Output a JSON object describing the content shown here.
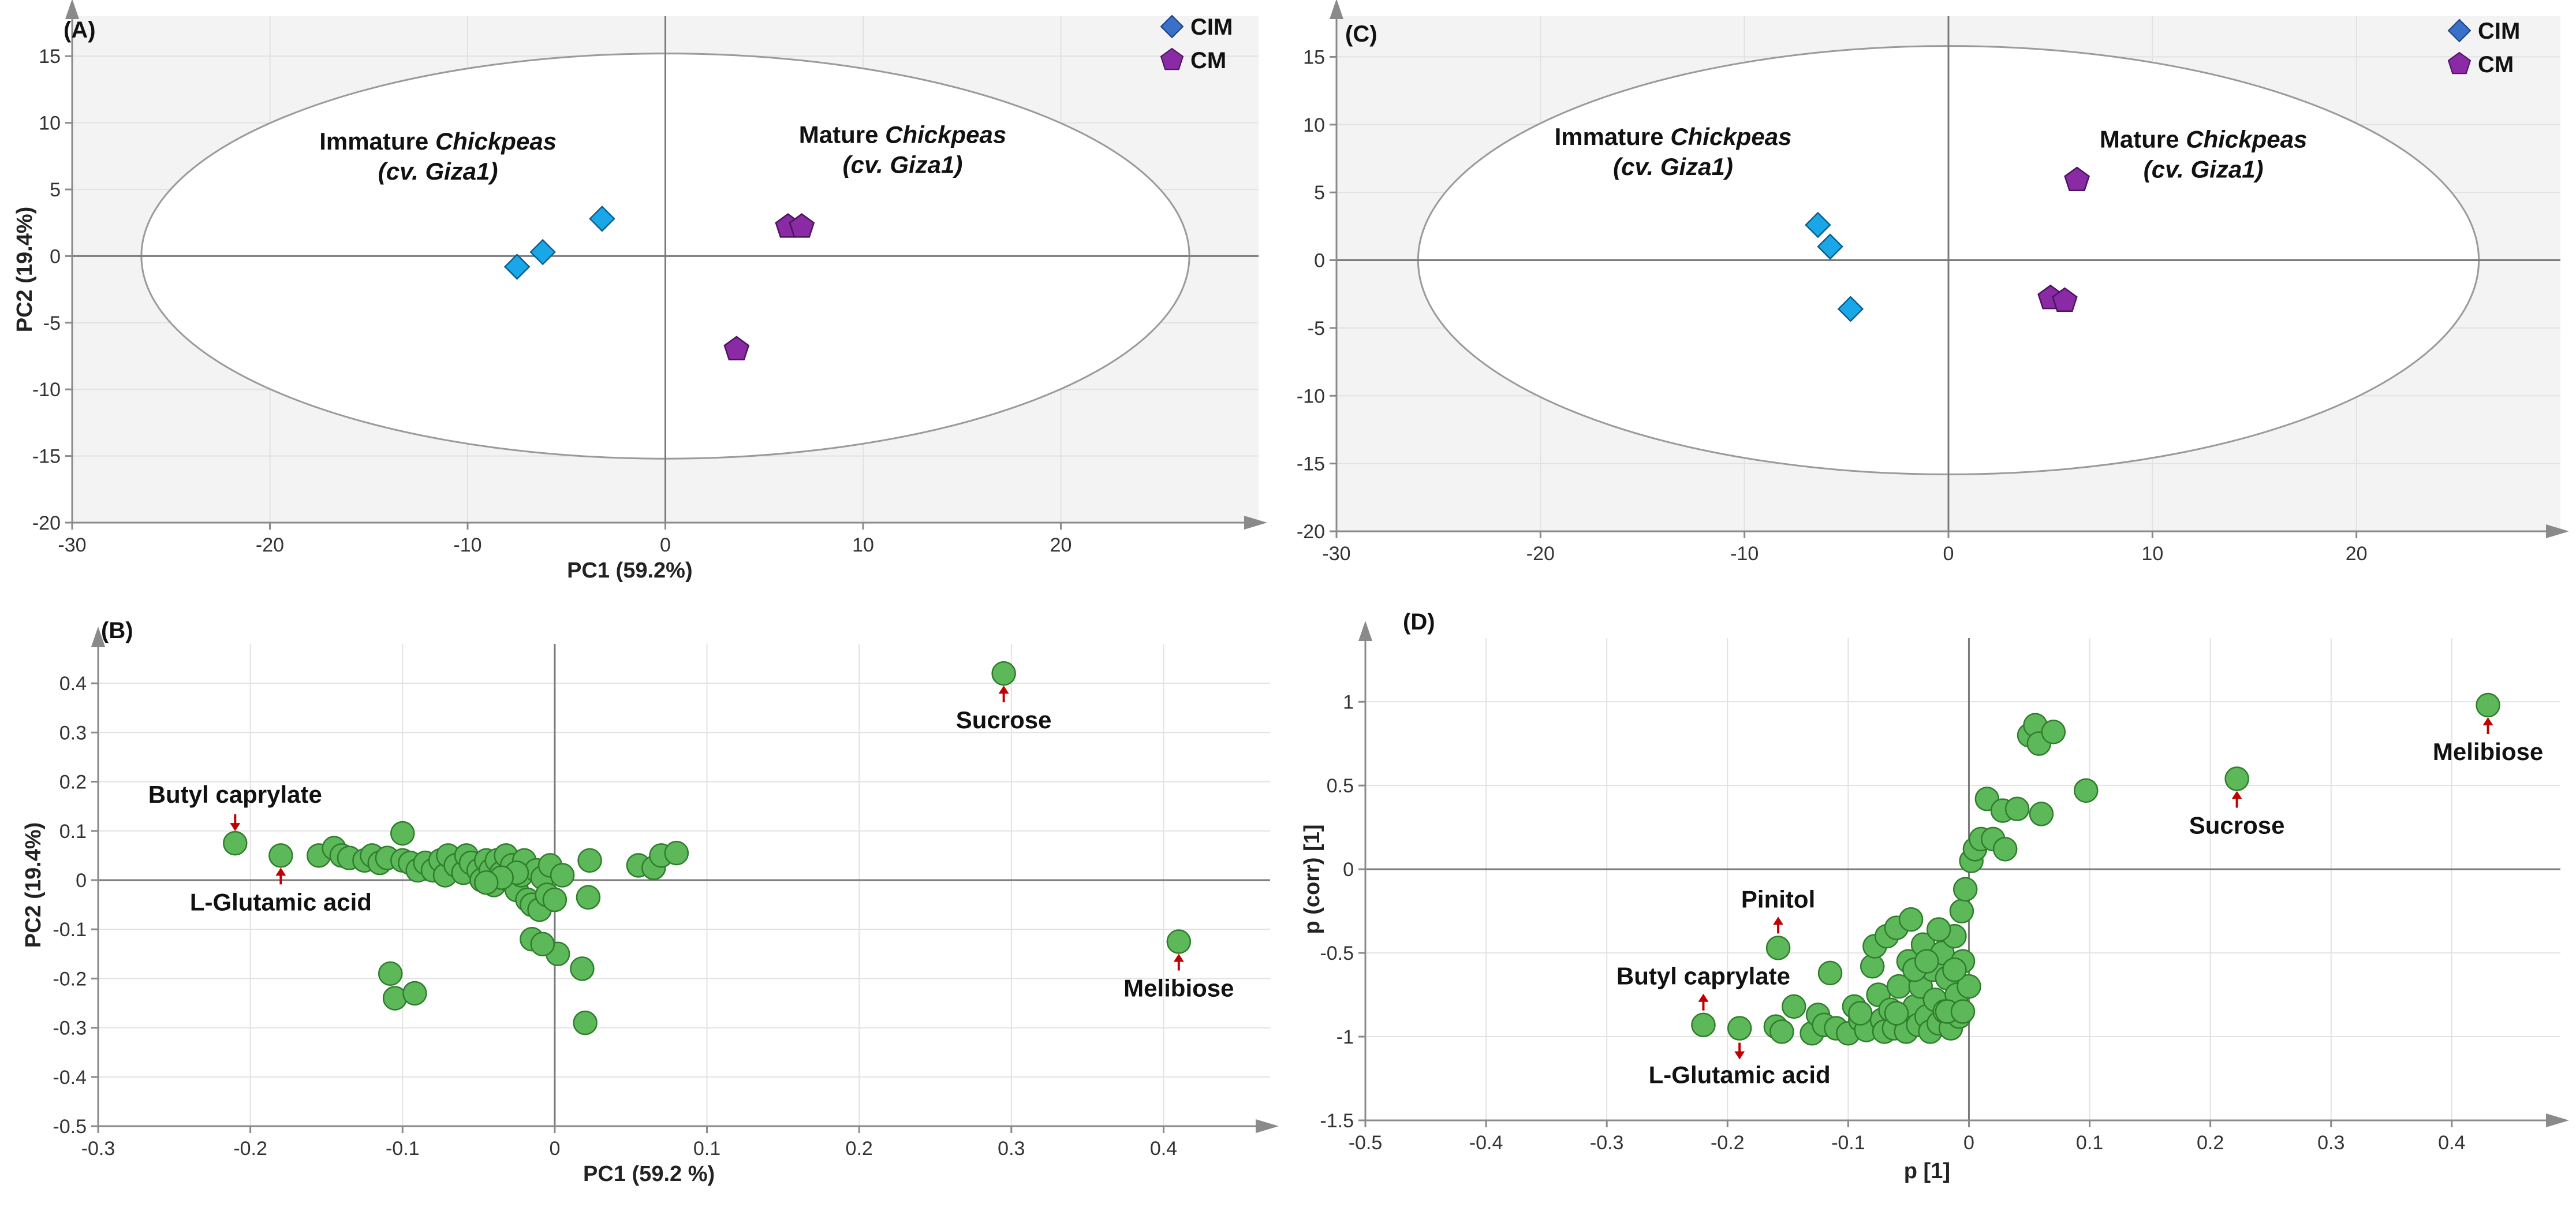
{
  "colors": {
    "cim": "#1aa7e8",
    "cm": "#8a2aa5",
    "loading": "#5db85a",
    "arrow": "#c00000",
    "plot_bg_shaded": "#f3f3f3",
    "grid": "#e2e2e2"
  },
  "chart_data": [
    {
      "id": "A",
      "type": "scatter",
      "panel_label": "(A)",
      "xlabel": "PC1 (59.2%)",
      "ylabel": "PC2 (19.4%)",
      "xlim": [
        -30,
        30
      ],
      "ylim": [
        -20,
        18
      ],
      "xticks": [
        -30,
        -20,
        -10,
        0,
        10,
        20
      ],
      "xtick_labels": [
        "-30",
        "-20",
        "-10",
        "0",
        "10",
        "20"
      ],
      "yticks": [
        -20,
        -15,
        -10,
        -5,
        0,
        5,
        10,
        15
      ],
      "ytick_labels": [
        "-20",
        "-15",
        "-10",
        "-5",
        "0",
        "5",
        "10",
        "15"
      ],
      "ellipse": {
        "cx": 0,
        "cy": 0,
        "rx": 26.5,
        "ry": 15.2
      },
      "legend": [
        {
          "label": "CIM",
          "marker": "diamond"
        },
        {
          "label": "CM",
          "marker": "pentagon"
        }
      ],
      "series": [
        {
          "name": "CIM",
          "marker": "diamond",
          "points": [
            [
              -7.5,
              -0.8
            ],
            [
              -6.2,
              0.3
            ],
            [
              -3.2,
              2.8
            ]
          ]
        },
        {
          "name": "CM",
          "marker": "pentagon",
          "points": [
            [
              6.2,
              2.2
            ],
            [
              6.9,
              2.2
            ],
            [
              3.6,
              -7.0
            ]
          ]
        }
      ],
      "group_labels": [
        {
          "pre": "Immature ",
          "em": "Chickpeas",
          "line2": "(cv. Giza1)",
          "x": -11.5,
          "y": 8.0
        },
        {
          "pre": "Mature ",
          "em": "Chickpeas",
          "line2": "(cv. Giza1)",
          "x": 12.0,
          "y": 8.5
        }
      ]
    },
    {
      "id": "C",
      "type": "scatter",
      "panel_label": "(C)",
      "xlabel": "",
      "ylabel": "",
      "xlim": [
        -30,
        30
      ],
      "ylim": [
        -20,
        18
      ],
      "xticks": [
        -30,
        -20,
        -10,
        0,
        10,
        20
      ],
      "xtick_labels": [
        "-30",
        "-20",
        "-10",
        "0",
        "10",
        "20"
      ],
      "yticks": [
        -20,
        -15,
        -10,
        -5,
        0,
        5,
        10,
        15
      ],
      "ytick_labels": [
        "-20",
        "-15",
        "-10",
        "-5",
        "0",
        "5",
        "10",
        "15"
      ],
      "ellipse": {
        "cx": 0,
        "cy": 0,
        "rx": 26.0,
        "ry": 15.8
      },
      "legend": [
        {
          "label": "CIM",
          "marker": "diamond"
        },
        {
          "label": "CM",
          "marker": "pentagon"
        }
      ],
      "series": [
        {
          "name": "CIM",
          "marker": "diamond",
          "points": [
            [
              -6.4,
              2.6
            ],
            [
              -5.8,
              1.0
            ],
            [
              -4.8,
              -3.6
            ]
          ]
        },
        {
          "name": "CM",
          "marker": "pentagon",
          "points": [
            [
              6.3,
              5.9
            ],
            [
              5.0,
              -2.8
            ],
            [
              5.7,
              -3.0
            ]
          ]
        }
      ],
      "group_labels": [
        {
          "pre": "Immature ",
          "em": "Chickpeas",
          "line2": "(cv. Giza1)",
          "x": -13.5,
          "y": 8.5
        },
        {
          "pre": "Mature ",
          "em": "Chickpeas",
          "line2": "(cv. Giza1)",
          "x": 12.5,
          "y": 8.3
        }
      ]
    },
    {
      "id": "B",
      "type": "scatter",
      "panel_label": "(B)",
      "xlabel": "PC1 (59.2 %)",
      "ylabel": "PC2 (19.4%)",
      "xlim": [
        -0.3,
        0.47
      ],
      "ylim": [
        -0.5,
        0.48
      ],
      "xticks": [
        -0.3,
        -0.2,
        -0.1,
        0,
        0.1,
        0.2,
        0.3,
        0.4
      ],
      "xtick_labels": [
        "-0.3",
        "-0.2",
        "-0.1",
        "0",
        "0.1",
        "0.2",
        "0.3",
        "0.4"
      ],
      "yticks": [
        -0.5,
        -0.4,
        -0.3,
        -0.2,
        -0.1,
        0,
        0.1,
        0.2,
        0.3,
        0.4
      ],
      "ytick_labels": [
        "-0.5",
        "-0.4",
        "-0.3",
        "-0.2",
        "-0.1",
        "0",
        "0.1",
        "0.2",
        "0.3",
        "0.4"
      ],
      "series": [
        {
          "name": "variables",
          "marker": "circle",
          "points": [
            [
              -0.21,
              0.075
            ],
            [
              -0.18,
              0.05
            ],
            [
              -0.155,
              0.05
            ],
            [
              -0.145,
              0.065
            ],
            [
              -0.14,
              0.05
            ],
            [
              -0.135,
              0.045
            ],
            [
              -0.125,
              0.04
            ],
            [
              -0.12,
              0.05
            ],
            [
              -0.115,
              0.035
            ],
            [
              -0.11,
              0.045
            ],
            [
              -0.1,
              0.095
            ],
            [
              -0.1,
              0.04
            ],
            [
              -0.095,
              0.035
            ],
            [
              -0.09,
              0.02
            ],
            [
              -0.085,
              0.035
            ],
            [
              -0.08,
              0.02
            ],
            [
              -0.075,
              0.04
            ],
            [
              -0.072,
              0.01
            ],
            [
              -0.07,
              0.05
            ],
            [
              -0.065,
              0.03
            ],
            [
              -0.06,
              0.015
            ],
            [
              -0.058,
              0.05
            ],
            [
              -0.055,
              0.035
            ],
            [
              -0.05,
              0.02
            ],
            [
              -0.048,
              0.0
            ],
            [
              -0.045,
              0.04
            ],
            [
              -0.042,
              0.02
            ],
            [
              -0.04,
              -0.01
            ],
            [
              -0.038,
              0.04
            ],
            [
              -0.035,
              0.015
            ],
            [
              -0.032,
              0.05
            ],
            [
              -0.03,
              0.0
            ],
            [
              -0.028,
              0.03
            ],
            [
              -0.025,
              -0.02
            ],
            [
              -0.022,
              0.01
            ],
            [
              -0.02,
              0.04
            ],
            [
              -0.018,
              -0.04
            ],
            [
              -0.015,
              -0.05
            ],
            [
              -0.012,
              0.02
            ],
            [
              -0.01,
              -0.06
            ],
            [
              -0.008,
              0.005
            ],
            [
              -0.005,
              -0.03
            ],
            [
              -0.003,
              0.03
            ],
            [
              0.0,
              -0.04
            ],
            [
              0.002,
              -0.15
            ],
            [
              0.005,
              0.01
            ],
            [
              -0.015,
              -0.12
            ],
            [
              -0.008,
              -0.13
            ],
            [
              0.018,
              -0.18
            ],
            [
              0.02,
              -0.29
            ],
            [
              0.022,
              -0.035
            ],
            [
              0.023,
              0.04
            ],
            [
              0.055,
              0.03
            ],
            [
              0.065,
              0.025
            ],
            [
              0.07,
              0.05
            ],
            [
              0.08,
              0.055
            ],
            [
              -0.108,
              -0.19
            ],
            [
              -0.105,
              -0.24
            ],
            [
              -0.092,
              -0.23
            ],
            [
              -0.025,
              0.015
            ],
            [
              -0.035,
              0.005
            ],
            [
              -0.045,
              -0.005
            ]
          ]
        },
        {
          "name": "Sucrose",
          "marker": "circle",
          "points": [
            [
              0.295,
              0.42
            ]
          ]
        },
        {
          "name": "Melibiose",
          "marker": "circle",
          "points": [
            [
              0.41,
              -0.125
            ]
          ]
        }
      ],
      "annotations": [
        {
          "text": "Sucrose",
          "x": 0.295,
          "y": 0.42,
          "arrow": "up",
          "pos": "below"
        },
        {
          "text": "Melibiose",
          "x": 0.41,
          "y": -0.125,
          "arrow": "up",
          "pos": "below"
        },
        {
          "text": "Butyl caprylate",
          "x": -0.21,
          "y": 0.075,
          "arrow": "down",
          "pos": "above"
        },
        {
          "text": "L-Glutamic acid",
          "x": -0.18,
          "y": 0.05,
          "arrow": "up",
          "pos": "below"
        }
      ]
    },
    {
      "id": "D",
      "type": "scatter",
      "panel_label": "(D)",
      "xlabel": "p [1]",
      "ylabel": "p (corr) [1]",
      "xlim": [
        -0.5,
        0.49
      ],
      "ylim": [
        -1.5,
        1.38
      ],
      "xticks": [
        -0.5,
        -0.4,
        -0.3,
        -0.2,
        -0.1,
        0,
        0.1,
        0.2,
        0.3,
        0.4
      ],
      "xtick_labels": [
        "-0.5",
        "-0.4",
        "-0.3",
        "-0.2",
        "-0.1",
        "0",
        "0.1",
        "0.2",
        "0.3",
        "0.4"
      ],
      "yticks": [
        -1.5,
        -1,
        -0.5,
        0,
        0.5,
        1
      ],
      "ytick_labels": [
        "-1.5",
        "-1",
        "-0.5",
        "0",
        "0.5",
        "1"
      ],
      "series": [
        {
          "name": "variables",
          "marker": "circle",
          "points": [
            [
              -0.22,
              -0.93
            ],
            [
              -0.19,
              -0.95
            ],
            [
              -0.16,
              -0.94
            ],
            [
              -0.155,
              -0.97
            ],
            [
              -0.145,
              -0.82
            ],
            [
              -0.13,
              -0.98
            ],
            [
              -0.125,
              -0.87
            ],
            [
              -0.12,
              -0.93
            ],
            [
              -0.115,
              -0.62
            ],
            [
              -0.11,
              -0.95
            ],
            [
              -0.1,
              -0.98
            ],
            [
              -0.095,
              -0.82
            ],
            [
              -0.09,
              -0.9
            ],
            [
              -0.085,
              -0.96
            ],
            [
              -0.08,
              -0.58
            ],
            [
              -0.078,
              -0.46
            ],
            [
              -0.075,
              -0.75
            ],
            [
              -0.072,
              -0.9
            ],
            [
              -0.07,
              -0.97
            ],
            [
              -0.068,
              -0.4
            ],
            [
              -0.065,
              -0.84
            ],
            [
              -0.062,
              -0.95
            ],
            [
              -0.06,
              -0.35
            ],
            [
              -0.058,
              -0.7
            ],
            [
              -0.055,
              -0.88
            ],
            [
              -0.052,
              -0.97
            ],
            [
              -0.05,
              -0.55
            ],
            [
              -0.048,
              -0.3
            ],
            [
              -0.045,
              -0.82
            ],
            [
              -0.042,
              -0.93
            ],
            [
              -0.04,
              -0.7
            ],
            [
              -0.038,
              -0.45
            ],
            [
              -0.035,
              -0.88
            ],
            [
              -0.032,
              -0.97
            ],
            [
              -0.03,
              -0.6
            ],
            [
              -0.028,
              -0.78
            ],
            [
              -0.025,
              -0.92
            ],
            [
              -0.022,
              -0.5
            ],
            [
              -0.02,
              -0.85
            ],
            [
              -0.018,
              -0.65
            ],
            [
              -0.015,
              -0.95
            ],
            [
              -0.012,
              -0.4
            ],
            [
              -0.01,
              -0.75
            ],
            [
              -0.008,
              -0.88
            ],
            [
              -0.006,
              -0.25
            ],
            [
              -0.005,
              -0.55
            ],
            [
              -0.003,
              -0.12
            ],
            [
              0.0,
              -0.7
            ],
            [
              0.002,
              0.05
            ],
            [
              0.005,
              0.12
            ],
            [
              0.01,
              0.18
            ],
            [
              0.015,
              0.42
            ],
            [
              0.02,
              0.18
            ],
            [
              0.028,
              0.35
            ],
            [
              0.03,
              0.12
            ],
            [
              0.04,
              0.36
            ],
            [
              0.05,
              0.8
            ],
            [
              0.055,
              0.86
            ],
            [
              0.058,
              0.75
            ],
            [
              0.06,
              0.33
            ],
            [
              0.07,
              0.82
            ],
            [
              0.097,
              0.47
            ],
            [
              -0.09,
              -0.86
            ],
            [
              -0.06,
              -0.86
            ],
            [
              -0.045,
              -0.6
            ],
            [
              -0.035,
              -0.55
            ],
            [
              -0.025,
              -0.36
            ],
            [
              -0.018,
              -0.85
            ],
            [
              -0.012,
              -0.6
            ],
            [
              -0.005,
              -0.85
            ]
          ]
        },
        {
          "name": "Sucrose",
          "marker": "circle",
          "points": [
            [
              0.222,
              0.54
            ]
          ]
        },
        {
          "name": "Melibiose",
          "marker": "circle",
          "points": [
            [
              0.43,
              0.98
            ]
          ]
        },
        {
          "name": "Pinitol",
          "marker": "circle",
          "points": [
            [
              -0.158,
              -0.47
            ]
          ]
        }
      ],
      "annotations": [
        {
          "text": "Melibiose",
          "x": 0.43,
          "y": 0.98,
          "arrow": "up",
          "pos": "below"
        },
        {
          "text": "Sucrose",
          "x": 0.222,
          "y": 0.54,
          "arrow": "up",
          "pos": "below"
        },
        {
          "text": "Pinitol",
          "x": -0.158,
          "y": -0.47,
          "arrow": "up",
          "pos": "above"
        },
        {
          "text": "Butyl caprylate",
          "x": -0.22,
          "y": -0.93,
          "arrow": "up",
          "pos": "above"
        },
        {
          "text": "L-Glutamic acid",
          "x": -0.19,
          "y": -0.95,
          "arrow": "down",
          "pos": "below"
        }
      ]
    }
  ]
}
